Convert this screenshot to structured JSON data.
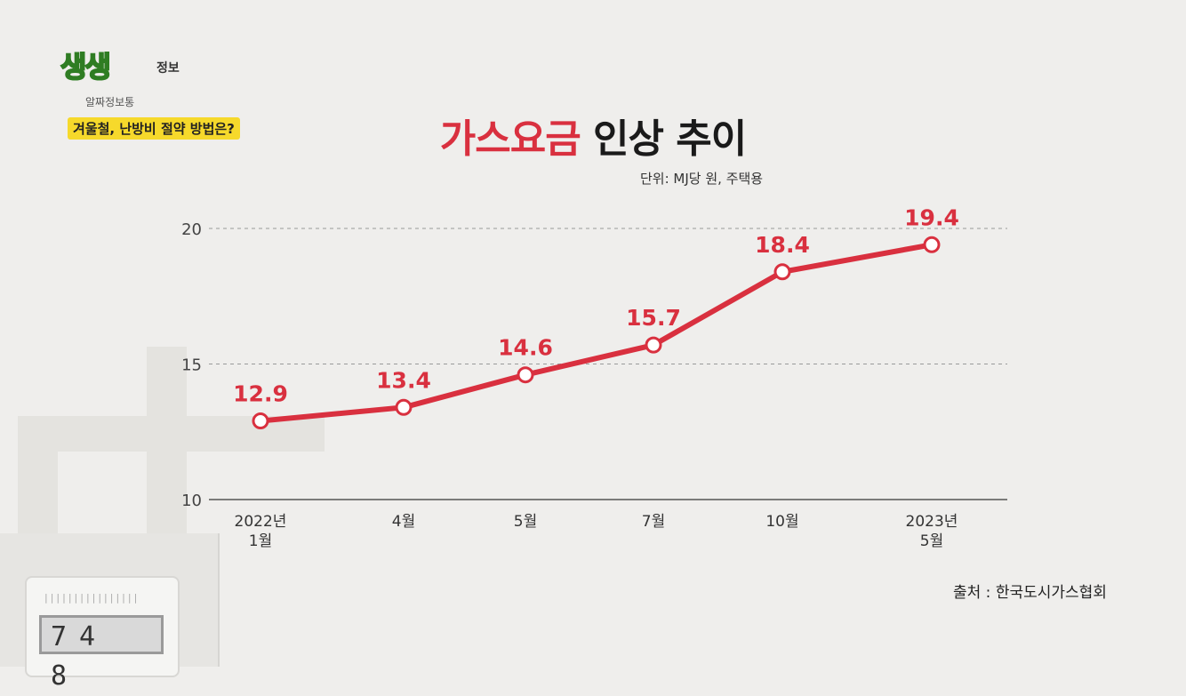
{
  "logo": {
    "title": "생생",
    "subtitle": "정보",
    "caption": "알짜정보통"
  },
  "topic": "겨울철, 난방비 절약 방법은?",
  "title": {
    "accent": "가스요금",
    "rest": " 인상 추이"
  },
  "unit_note": "단위: MJ당 원, 주택용",
  "source": "출처 : 한국도시가스협회",
  "meter_digits": "74 8",
  "colors": {
    "line": "#d9303f",
    "title_accent": "#d9303f",
    "badge": "#f6d92b",
    "grid": "#999999"
  },
  "chart_data": {
    "type": "line",
    "categories": [
      [
        "2022년",
        "1월"
      ],
      [
        "4월"
      ],
      [
        "5월"
      ],
      [
        "7월"
      ],
      [
        "10월"
      ],
      [
        "2023년",
        "5월"
      ]
    ],
    "values": [
      12.9,
      13.4,
      14.6,
      15.7,
      18.4,
      19.4
    ],
    "data_labels": [
      "12.9",
      "13.4",
      "14.6",
      "15.7",
      "18.4",
      "19.4"
    ],
    "ylim": [
      10,
      20
    ],
    "yticks": [
      10,
      15,
      20
    ],
    "grid": "dashed horizontal",
    "legend": "none"
  }
}
